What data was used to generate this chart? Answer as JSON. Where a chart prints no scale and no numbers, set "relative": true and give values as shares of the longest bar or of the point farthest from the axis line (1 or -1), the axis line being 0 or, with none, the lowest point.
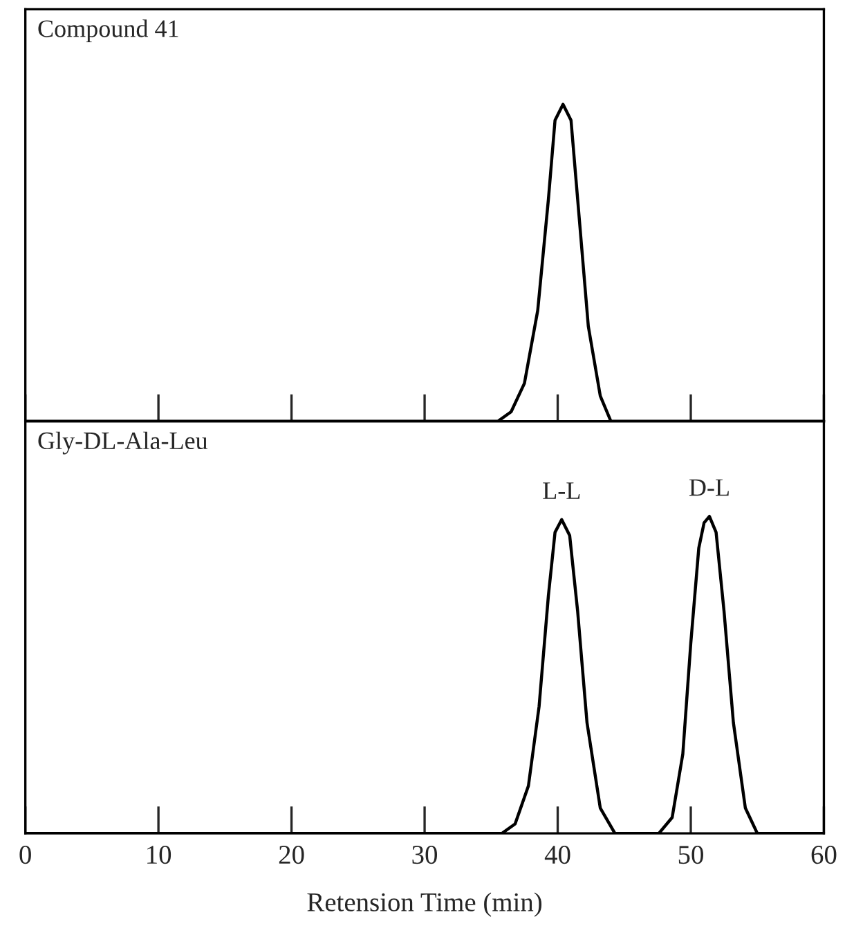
{
  "chart_data": [
    {
      "type": "line",
      "title": "Compound 41",
      "relative": true,
      "xlim": [
        0,
        60
      ],
      "xticks": [
        {
          "value": 0,
          "label": null
        },
        {
          "value": 10,
          "label": null
        },
        {
          "value": 20,
          "label": null
        },
        {
          "value": 30,
          "label": null
        },
        {
          "value": 40,
          "label": null
        },
        {
          "value": 50,
          "label": null
        },
        {
          "value": 60,
          "label": null
        }
      ],
      "tick_labels": false,
      "series": [
        {
          "color": "#000000",
          "x": [
            0,
            35.5,
            36.5,
            37.5,
            38.5,
            39.3,
            39.8,
            40.4,
            41.0,
            41.5,
            42.3,
            43.2,
            44,
            60
          ],
          "values": [
            0,
            0,
            0.03,
            0.12,
            0.35,
            0.7,
            0.95,
            1,
            0.95,
            0.7,
            0.3,
            0.08,
            0,
            0
          ]
        }
      ]
    },
    {
      "type": "line",
      "title": "Gly-DL-Ala-Leu",
      "relative": true,
      "xlabel": "Retension Time (min)",
      "xlim": [
        0,
        60
      ],
      "xticks": [
        0,
        10,
        20,
        30,
        40,
        50,
        60
      ],
      "tick_labels": "x",
      "annotations": [
        {
          "text": "L-L",
          "x": 40.3,
          "y": 0.99
        },
        {
          "text": "D-L",
          "x": 51.4,
          "y": 1
        }
      ],
      "series": [
        {
          "color": "#000000",
          "x": [
            0,
            35.8,
            36.8,
            37.8,
            38.6,
            39.3,
            39.8,
            40.3,
            40.9,
            41.5,
            42.2,
            43.2,
            44.3,
            47.6,
            48.6,
            49.4,
            50.0,
            50.6,
            51.0,
            51.4,
            51.9,
            52.5,
            53.2,
            54.1,
            55.0,
            60
          ],
          "values": [
            0,
            0,
            0.03,
            0.15,
            0.4,
            0.75,
            0.95,
            0.99,
            0.94,
            0.7,
            0.35,
            0.08,
            0,
            0,
            0.05,
            0.25,
            0.6,
            0.9,
            0.98,
            1,
            0.95,
            0.7,
            0.35,
            0.08,
            0,
            0
          ]
        }
      ]
    }
  ]
}
